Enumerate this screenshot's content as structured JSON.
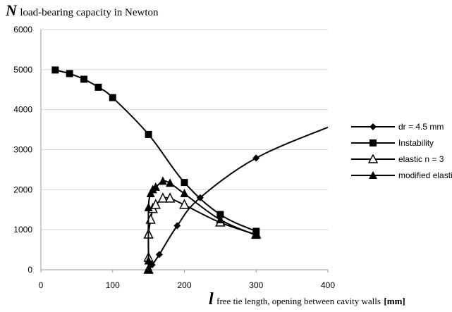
{
  "chart_data": {
    "type": "line",
    "ylabel_symbol": "N",
    "ylabel": "load-bearing capacity in Newton",
    "xlabel_symbol": "l",
    "xlabel": "free tie length, opening between cavity walls",
    "xlabel_unit": "[mm]",
    "xlim": [
      0,
      400
    ],
    "ylim": [
      0,
      6000
    ],
    "xticks": [
      0,
      100,
      200,
      300,
      400
    ],
    "yticks": [
      0,
      1000,
      2000,
      3000,
      4000,
      5000,
      6000
    ],
    "grid": "horizontal",
    "legend_position": "right",
    "series": [
      {
        "name": "dr = 4.5 mm",
        "marker": "diamond",
        "x": [
          150,
          155,
          165,
          190,
          222,
          300,
          400
        ],
        "y": [
          0,
          120,
          380,
          1100,
          1800,
          2790,
          3560
        ],
        "marker_x": [
          150,
          155,
          165,
          190,
          222,
          300
        ],
        "marker_y": [
          0,
          120,
          380,
          1100,
          1800,
          2790
        ]
      },
      {
        "name": "Instability",
        "marker": "square",
        "x": [
          20,
          40,
          60,
          80,
          100,
          150,
          200,
          250,
          300
        ],
        "y": [
          4990,
          4900,
          4760,
          4560,
          4300,
          3380,
          2180,
          1380,
          960
        ]
      },
      {
        "name": "elastic n = 3",
        "marker": "triangle-open",
        "x": [
          150,
          150,
          150,
          153,
          156,
          160,
          170,
          180,
          200,
          250,
          300
        ],
        "y": [
          0,
          300,
          880,
          1250,
          1520,
          1620,
          1780,
          1780,
          1620,
          1180,
          880
        ]
      },
      {
        "name": "modified elastic",
        "marker": "triangle-filled",
        "x": [
          150,
          150,
          150,
          153,
          156,
          160,
          170,
          180,
          200,
          250,
          300
        ],
        "y": [
          0,
          220,
          1550,
          1900,
          2000,
          2060,
          2210,
          2160,
          1900,
          1250,
          860
        ]
      }
    ]
  }
}
